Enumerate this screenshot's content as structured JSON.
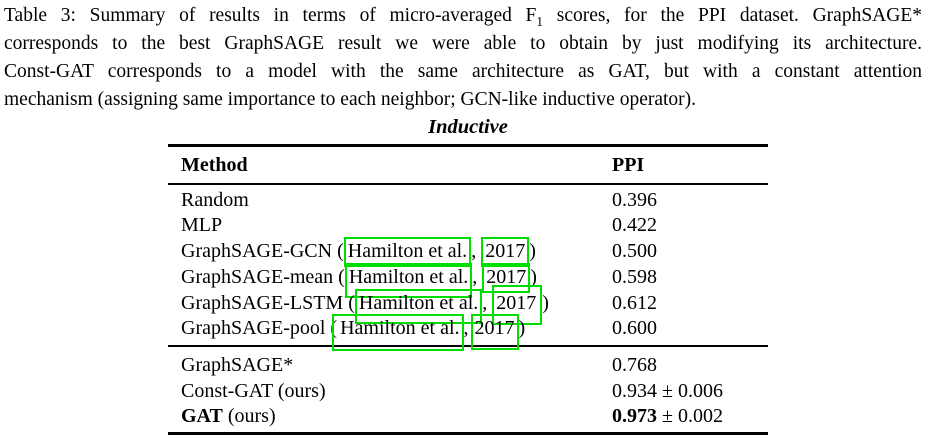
{
  "colors": {
    "citation_box": "#00dd00",
    "text": "#000000",
    "background": "#ffffff"
  },
  "caption": {
    "line1_before_sub": "Table 3: Summary of results in terms of micro-averaged F",
    "line1_sub": "1",
    "line1_after_sub": " scores, for the PPI dataset. GraphSAGE*",
    "line2": "corresponds to the best GraphSAGE result we were able to obtain by just modifying its architecture.",
    "line3": "Const-GAT corresponds to a model with the same architecture as GAT, but with a constant attention",
    "line4": "mechanism (assigning same importance to each neighbor; GCN-like inductive operator)."
  },
  "table": {
    "group_title": "Inductive",
    "columns": [
      "Method",
      "PPI"
    ],
    "sections": [
      {
        "rows": [
          {
            "method_pre": "Random",
            "value": "0.396"
          },
          {
            "method_pre": "MLP",
            "value": "0.422"
          },
          {
            "method_pre": "GraphSAGE-GCN (",
            "cite": {
              "name": "Hamilton et al.",
              "mid": ", ",
              "year": "2017",
              "post": ")"
            },
            "value": "0.500"
          },
          {
            "method_pre": "GraphSAGE-mean (",
            "cite": {
              "name": "Hamilton et al.",
              "mid": ", ",
              "year": "2017",
              "post": ")"
            },
            "value": "0.598"
          },
          {
            "method_pre": "GraphSAGE-LSTM (",
            "cite": {
              "name": "Hamilton et al.",
              "mid": ", ",
              "year": "2017",
              "post": ")"
            },
            "value": "0.612"
          },
          {
            "method_pre": "GraphSAGE-pool (",
            "cite": {
              "name": "Hamilton et al.",
              "mid": ", ",
              "year": "2017",
              "post": ")"
            },
            "value": "0.600"
          }
        ]
      },
      {
        "rows": [
          {
            "method_pre": "GraphSAGE*",
            "value": "0.768"
          },
          {
            "method_pre": "Const-GAT (ours)",
            "value": "0.934 ± 0.006"
          },
          {
            "method_bold": "GAT",
            "method_pre": " (ours)",
            "value_bold": "0.973",
            "value": " ± 0.002"
          }
        ]
      }
    ]
  }
}
